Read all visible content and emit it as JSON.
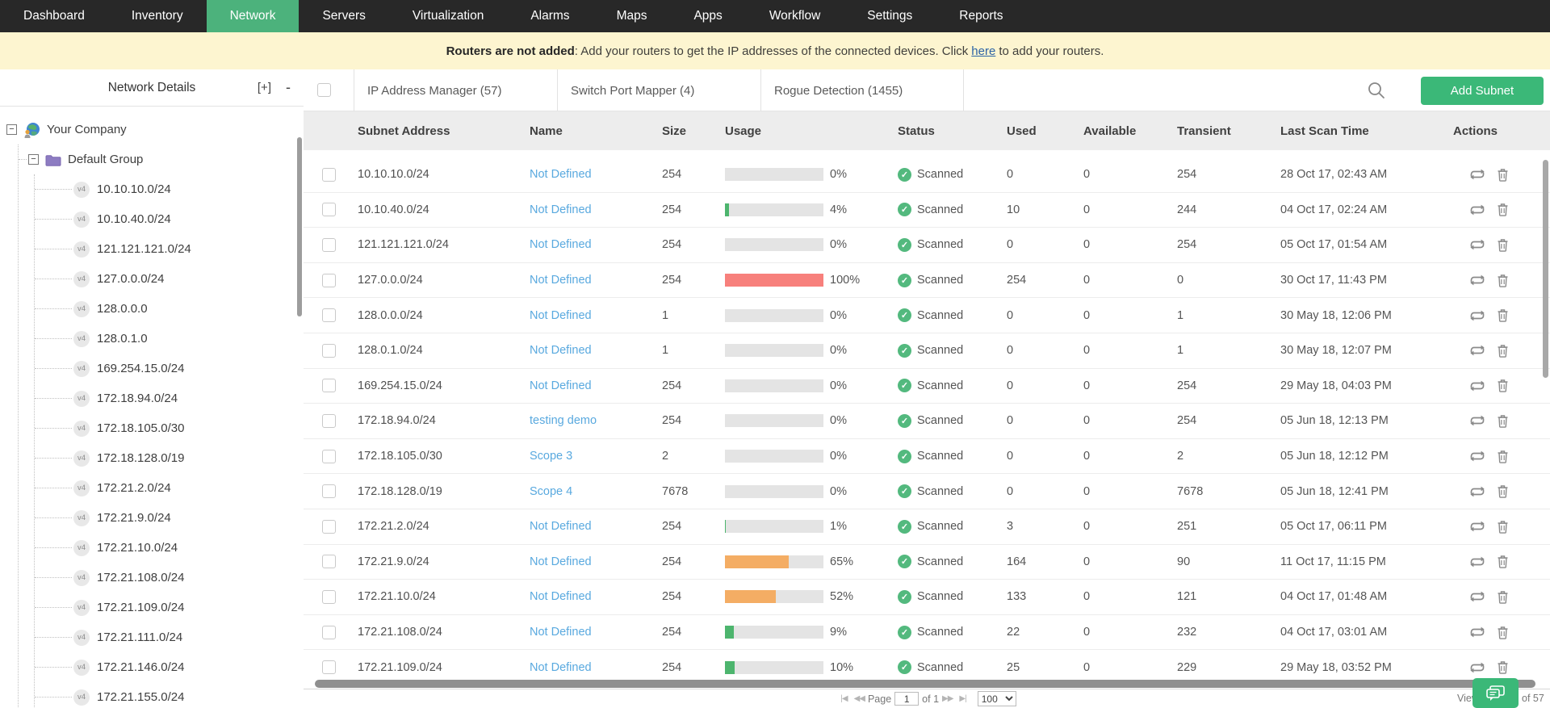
{
  "nav": {
    "items": [
      {
        "id": "dashboard",
        "label": "Dashboard",
        "active": false
      },
      {
        "id": "inventory",
        "label": "Inventory",
        "active": false
      },
      {
        "id": "network",
        "label": "Network",
        "active": true
      },
      {
        "id": "servers",
        "label": "Servers",
        "active": false
      },
      {
        "id": "virtualization",
        "label": "Virtualization",
        "active": false
      },
      {
        "id": "alarms",
        "label": "Alarms",
        "active": false
      },
      {
        "id": "maps",
        "label": "Maps",
        "active": false
      },
      {
        "id": "apps",
        "label": "Apps",
        "active": false
      },
      {
        "id": "workflow",
        "label": "Workflow",
        "active": false
      },
      {
        "id": "settings",
        "label": "Settings",
        "active": false
      },
      {
        "id": "reports",
        "label": "Reports",
        "active": false
      }
    ]
  },
  "banner": {
    "bold": "Routers are not added",
    "mid": ": Add your routers to get the IP addresses of the connected devices. Click",
    "link": "here",
    "suffix": "to add your routers."
  },
  "sidebar": {
    "title": "Network Details",
    "expand_all": "[+]",
    "collapse_all": "-",
    "root_label": "Your Company",
    "group_label": "Default Group",
    "badge": "v4",
    "items": [
      "10.10.10.0/24",
      "10.10.40.0/24",
      "121.121.121.0/24",
      "127.0.0.0/24",
      "128.0.0.0",
      "128.0.1.0",
      "169.254.15.0/24",
      "172.18.94.0/24",
      "172.18.105.0/30",
      "172.18.128.0/19",
      "172.21.2.0/24",
      "172.21.9.0/24",
      "172.21.10.0/24",
      "172.21.108.0/24",
      "172.21.109.0/24",
      "172.21.111.0/24",
      "172.21.146.0/24",
      "172.21.155.0/24"
    ]
  },
  "tabs": [
    {
      "id": "ip-address-manager",
      "label": "IP Address Manager (57)"
    },
    {
      "id": "switch-port-mapper",
      "label": "Switch Port Mapper (4)"
    },
    {
      "id": "rogue-detection",
      "label": "Rogue Detection (1455)"
    }
  ],
  "toolbar": {
    "add_subnet_label": "Add Subnet"
  },
  "table": {
    "columns": [
      "Subnet Address",
      "Name",
      "Size",
      "Usage",
      "Status",
      "Used",
      "Available",
      "Transient",
      "Last Scan Time",
      "Actions"
    ],
    "rows": [
      {
        "subnet": "10.10.10.0/24",
        "name": "Not Defined",
        "size": "254",
        "usage_pct": 0,
        "usage_label": "0%",
        "status": "Scanned",
        "used": "0",
        "available": "0",
        "transient": "254",
        "last_scan": "28 Oct 17, 02:43 AM"
      },
      {
        "subnet": "10.10.40.0/24",
        "name": "Not Defined",
        "size": "254",
        "usage_pct": 4,
        "usage_label": "4%",
        "status": "Scanned",
        "used": "10",
        "available": "0",
        "transient": "244",
        "last_scan": "04 Oct 17, 02:24 AM"
      },
      {
        "subnet": "121.121.121.0/24",
        "name": "Not Defined",
        "size": "254",
        "usage_pct": 0,
        "usage_label": "0%",
        "status": "Scanned",
        "used": "0",
        "available": "0",
        "transient": "254",
        "last_scan": "05 Oct 17, 01:54 AM"
      },
      {
        "subnet": "127.0.0.0/24",
        "name": "Not Defined",
        "size": "254",
        "usage_pct": 100,
        "usage_label": "100%",
        "status": "Scanned",
        "used": "254",
        "available": "0",
        "transient": "0",
        "last_scan": "30 Oct 17, 11:43 PM"
      },
      {
        "subnet": "128.0.0.0/24",
        "name": "Not Defined",
        "size": "1",
        "usage_pct": 0,
        "usage_label": "0%",
        "status": "Scanned",
        "used": "0",
        "available": "0",
        "transient": "1",
        "last_scan": "30 May 18, 12:06 PM"
      },
      {
        "subnet": "128.0.1.0/24",
        "name": "Not Defined",
        "size": "1",
        "usage_pct": 0,
        "usage_label": "0%",
        "status": "Scanned",
        "used": "0",
        "available": "0",
        "transient": "1",
        "last_scan": "30 May 18, 12:07 PM"
      },
      {
        "subnet": "169.254.15.0/24",
        "name": "Not Defined",
        "size": "254",
        "usage_pct": 0,
        "usage_label": "0%",
        "status": "Scanned",
        "used": "0",
        "available": "0",
        "transient": "254",
        "last_scan": "29 May 18, 04:03 PM"
      },
      {
        "subnet": "172.18.94.0/24",
        "name": "testing demo",
        "size": "254",
        "usage_pct": 0,
        "usage_label": "0%",
        "status": "Scanned",
        "used": "0",
        "available": "0",
        "transient": "254",
        "last_scan": "05 Jun 18, 12:13 PM"
      },
      {
        "subnet": "172.18.105.0/30",
        "name": "Scope 3",
        "size": "2",
        "usage_pct": 0,
        "usage_label": "0%",
        "status": "Scanned",
        "used": "0",
        "available": "0",
        "transient": "2",
        "last_scan": "05 Jun 18, 12:12 PM"
      },
      {
        "subnet": "172.18.128.0/19",
        "name": "Scope 4",
        "size": "7678",
        "usage_pct": 0,
        "usage_label": "0%",
        "status": "Scanned",
        "used": "0",
        "available": "0",
        "transient": "7678",
        "last_scan": "05 Jun 18, 12:41 PM"
      },
      {
        "subnet": "172.21.2.0/24",
        "name": "Not Defined",
        "size": "254",
        "usage_pct": 1,
        "usage_label": "1%",
        "status": "Scanned",
        "used": "3",
        "available": "0",
        "transient": "251",
        "last_scan": "05 Oct 17, 06:11 PM"
      },
      {
        "subnet": "172.21.9.0/24",
        "name": "Not Defined",
        "size": "254",
        "usage_pct": 65,
        "usage_label": "65%",
        "status": "Scanned",
        "used": "164",
        "available": "0",
        "transient": "90",
        "last_scan": "11 Oct 17, 11:15 PM"
      },
      {
        "subnet": "172.21.10.0/24",
        "name": "Not Defined",
        "size": "254",
        "usage_pct": 52,
        "usage_label": "52%",
        "status": "Scanned",
        "used": "133",
        "available": "0",
        "transient": "121",
        "last_scan": "04 Oct 17, 01:48 AM"
      },
      {
        "subnet": "172.21.108.0/24",
        "name": "Not Defined",
        "size": "254",
        "usage_pct": 9,
        "usage_label": "9%",
        "status": "Scanned",
        "used": "22",
        "available": "0",
        "transient": "232",
        "last_scan": "04 Oct 17, 03:01 AM"
      },
      {
        "subnet": "172.21.109.0/24",
        "name": "Not Defined",
        "size": "254",
        "usage_pct": 10,
        "usage_label": "10%",
        "status": "Scanned",
        "used": "25",
        "available": "0",
        "transient": "229",
        "last_scan": "29 May 18, 03:52 PM"
      }
    ]
  },
  "pagination": {
    "page_label": "Page",
    "page_value": "1",
    "of_label": "of 1",
    "page_size": "100",
    "view_prefix": "View",
    "view_suffix": "of 57"
  },
  "colors": {
    "accent_green": "#3bb878",
    "nav_active_green": "#4cb27c",
    "usage_green": "#4db56e",
    "usage_orange": "#f4ad64",
    "usage_red": "#f7807c",
    "status_green": "#53b97e",
    "link_blue": "#59a9df",
    "banner_bg": "#fdf5d0"
  }
}
